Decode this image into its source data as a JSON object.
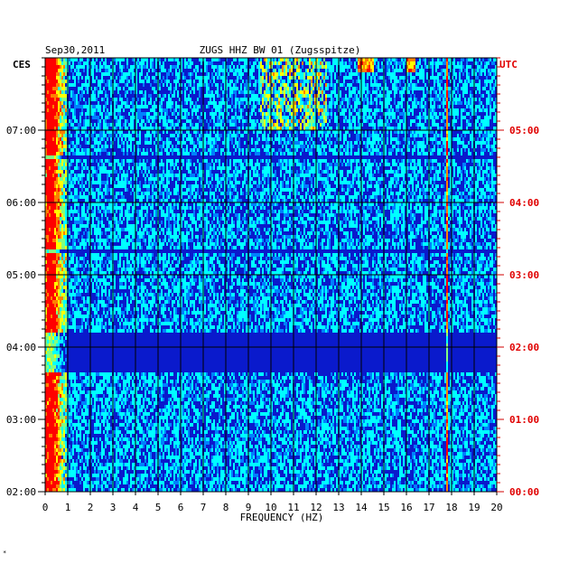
{
  "chart_data": {
    "type": "heatmap",
    "date": "Sep30,2011",
    "title": "ZUGS HHZ BW 01 (Zugsspitze)",
    "xlabel": "FREQUENCY (HZ)",
    "left_axis_label": "CES",
    "right_axis_label": "UTC",
    "x_range": [
      0,
      20
    ],
    "x_ticks": [
      "0",
      "1",
      "2",
      "3",
      "4",
      "5",
      "6",
      "7",
      "8",
      "9",
      "10",
      "11",
      "12",
      "13",
      "14",
      "15",
      "16",
      "17",
      "18",
      "19",
      "20"
    ],
    "left_time_ticks": [
      "07:00",
      "06:00",
      "05:00",
      "04:00",
      "03:00",
      "02:00"
    ],
    "right_time_ticks": [
      "05:00",
      "04:00",
      "03:00",
      "02:00",
      "01:00",
      "00:00"
    ],
    "time_range_utc": [
      "00:00",
      "06:00"
    ],
    "colormap": [
      "#00008b",
      "#0000ff",
      "#0080ff",
      "#00ffff",
      "#80ff80",
      "#ffff00",
      "#ff8000",
      "#ff0000"
    ],
    "background_color": "#0a1acc",
    "grid": true,
    "footer_mark": "*"
  }
}
